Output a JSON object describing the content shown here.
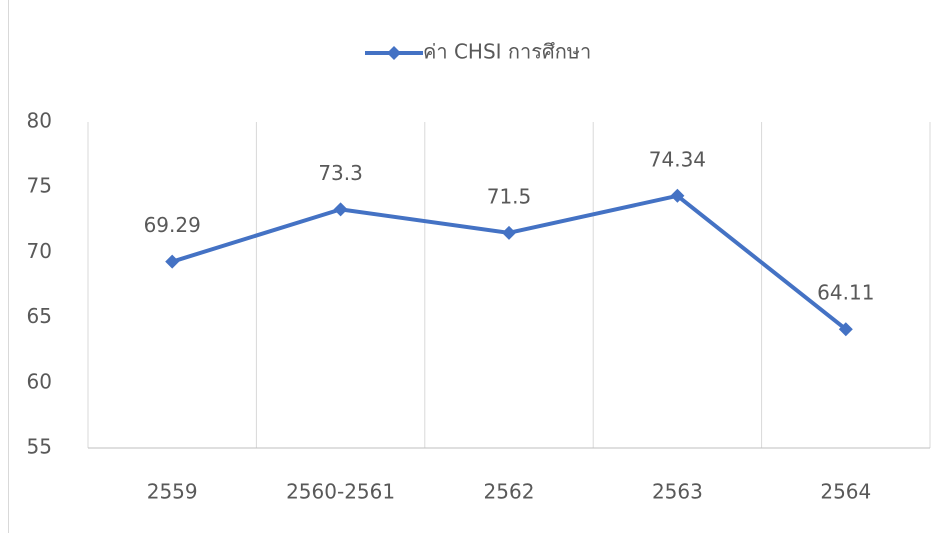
{
  "chart_data": {
    "type": "line",
    "categories": [
      "2559",
      "2560-2561",
      "2562",
      "2563",
      "2564"
    ],
    "series": [
      {
        "name": "ค่า CHSI การศึกษา",
        "color": "#4472c4",
        "values": [
          69.29,
          73.3,
          71.5,
          74.34,
          64.11
        ]
      }
    ],
    "ylim": [
      55,
      80
    ],
    "yticks": [
      55,
      60,
      65,
      70,
      75,
      80
    ],
    "grid": "x",
    "legend": "top",
    "data_labels": true
  }
}
